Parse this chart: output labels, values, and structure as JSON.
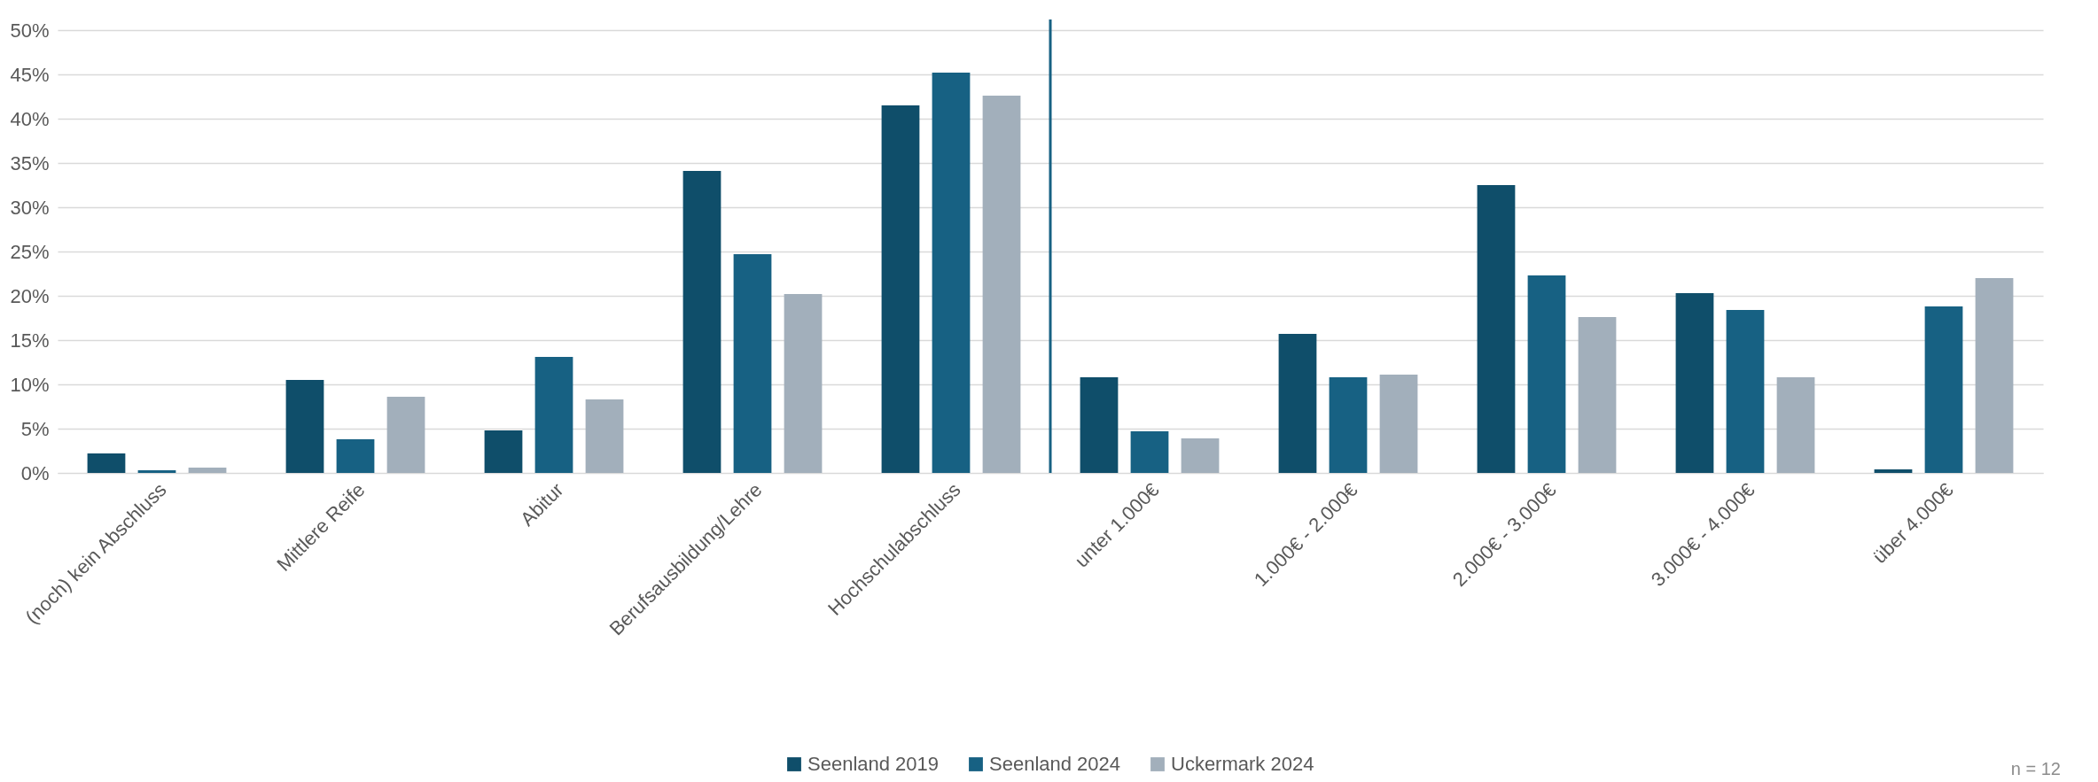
{
  "chart_data": {
    "type": "bar",
    "categories": [
      "(noch) kein Abschluss",
      "Mittlere Reife",
      "Abitur",
      "Berufsausbildung/Lehre",
      "Hochschulabschluss",
      "unter 1.000€",
      "1.000€ - 2.000€",
      "2.000€ - 3.000€",
      "3.000€ - 4.000€",
      "über 4.000€"
    ],
    "series": [
      {
        "name": "Seenland 2019",
        "color": "#0f4e6a",
        "values": [
          2.2,
          10.5,
          4.8,
          34.1,
          41.5,
          10.8,
          15.7,
          32.5,
          20.3,
          0.4
        ]
      },
      {
        "name": "Seenland 2024",
        "color": "#176183",
        "values": [
          0.3,
          3.8,
          13.1,
          24.7,
          45.2,
          4.7,
          10.8,
          22.3,
          18.4,
          18.8
        ]
      },
      {
        "name": "Uckermark 2024",
        "color": "#a2afbb",
        "values": [
          0.6,
          8.6,
          8.3,
          20.2,
          42.6,
          3.9,
          11.1,
          17.6,
          10.8,
          22.0
        ]
      }
    ],
    "ylim": [
      0,
      50
    ],
    "yticks": [
      {
        "value": 0,
        "label": "0%"
      },
      {
        "value": 5,
        "label": "5%"
      },
      {
        "value": 10,
        "label": "10%"
      },
      {
        "value": 15,
        "label": "15%"
      },
      {
        "value": 20,
        "label": "20%"
      },
      {
        "value": 25,
        "label": "25%"
      },
      {
        "value": 30,
        "label": "30%"
      },
      {
        "value": 35,
        "label": "35%"
      },
      {
        "value": 40,
        "label": "40%"
      },
      {
        "value": 45,
        "label": "45%"
      },
      {
        "value": 50,
        "label": "50%"
      }
    ],
    "grid": "y",
    "legend": "bottom",
    "ref_lines": [
      {
        "axis": "x",
        "value": "unter 1.000€",
        "color": "#176183"
      }
    ],
    "annotations": [
      "n = 12"
    ]
  }
}
